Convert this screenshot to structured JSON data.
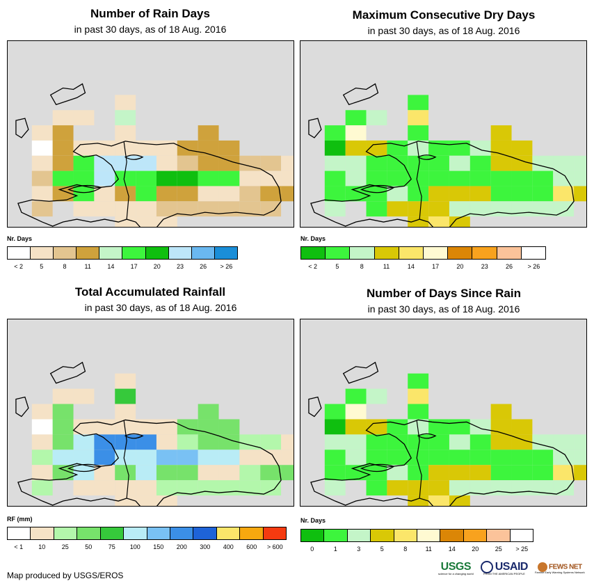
{
  "palette": {
    "ocean": "#dcdcdc",
    "outline": "#000000"
  },
  "panels": [
    {
      "id": "rain-days",
      "title": "Number of Rain Days",
      "subtitle": "in past 30 days, as of 18 Aug. 2016",
      "legend_title": "Nr. Days",
      "legend_labels": [
        "< 2",
        "5",
        "8",
        "11",
        "14",
        "17",
        "20",
        "23",
        "26",
        "> 26"
      ],
      "legend_colors": [
        "#ffffff",
        "#f5e2c6",
        "#e3c590",
        "#cfa23c",
        "#c4f5c8",
        "#3df53d",
        "#0fbf0f",
        "#bde6f9",
        "#6ab8f0",
        "#1a8ed8"
      ],
      "grid": [
        "....1.......",
        ".11.4.......",
        "13..1...3..",
        "0311111333...",
        "1357771233221.",
        "2557556655111.",
        "1351353311233.",
        "2.1111222222.",
        "....111......"
      ]
    },
    {
      "id": "dry-days",
      "title": "Maximum Consecutive Dry Days",
      "subtitle": "in past 30 days, as of 18 Aug. 2016",
      "legend_title": "Nr. Days",
      "legend_labels": [
        "< 2",
        "5",
        "8",
        "11",
        "14",
        "17",
        "20",
        "23",
        "26",
        "> 26"
      ],
      "legend_colors": [
        "#0fbf0f",
        "#3df53d",
        "#c4f5c8",
        "#d9c806",
        "#fbe66a",
        "#fffad2",
        "#db8606",
        "#f8a21e",
        "#fbc39a",
        "#ffffff"
      ],
      "grid": [
        "....1.......",
        ".12.4.......",
        "15..1...3..",
        "0331211233...",
        "2211112133222.",
        "1211111111122.",
        "1112133311143.",
        "2.1333222222.",
        "....343......"
      ]
    },
    {
      "id": "rainfall",
      "title": "Total Accumulated Rainfall",
      "subtitle": "in past 30 days, as of 18 Aug. 2016",
      "legend_title": "RF (mm)",
      "legend_labels": [
        "< 1",
        "10",
        "25",
        "50",
        "75",
        "100",
        "150",
        "200",
        "300",
        "400",
        "600",
        "> 600"
      ],
      "legend_colors": [
        "#ffffff",
        "#f5e2c6",
        "#b3f7ab",
        "#77e26b",
        "#36c93b",
        "#b9ecf6",
        "#79c1f4",
        "#3b8fe7",
        "#1e63d8",
        "#fbe66a",
        "#f7a80f",
        "#f53a10"
      ],
      "grid": [
        "....1.......",
        ".11.4.......",
        "13..1...3..",
        "0311111333...",
        "1357771233221.",
        "2557556655111.",
        "1351353311233.",
        "2.1111222222.",
        "....111......"
      ]
    },
    {
      "id": "days-since-rain",
      "title": "Number of Days Since Rain",
      "subtitle": "in past 30 days, as of 18 Aug. 2016",
      "legend_title": "Nr. Days",
      "legend_labels": [
        "0",
        "1",
        "3",
        "5",
        "8",
        "11",
        "14",
        "20",
        "25",
        "> 25"
      ],
      "legend_colors": [
        "#0fbf0f",
        "#3df53d",
        "#c4f5c8",
        "#d9c806",
        "#fbe66a",
        "#fffad2",
        "#db8606",
        "#f8a21e",
        "#fbc39a",
        "#ffffff"
      ],
      "grid": [
        "....1.......",
        ".12.4.......",
        "15..1...3..",
        "0331211233...",
        "2211112133222.",
        "1211111111122.",
        "1112133311143.",
        "2.1333222222.",
        "....343......"
      ]
    }
  ],
  "footer": {
    "credit": "Map produced by USGS/EROS"
  },
  "logos": {
    "usgs": "USGS",
    "usgs_tag": "science for a changing world",
    "usaid": "USAID",
    "usaid_tag": "FROM THE AMERICAN PEOPLE",
    "fews": "FEWS NET",
    "fews_tag": "Famine Early Warning Systems Network"
  }
}
